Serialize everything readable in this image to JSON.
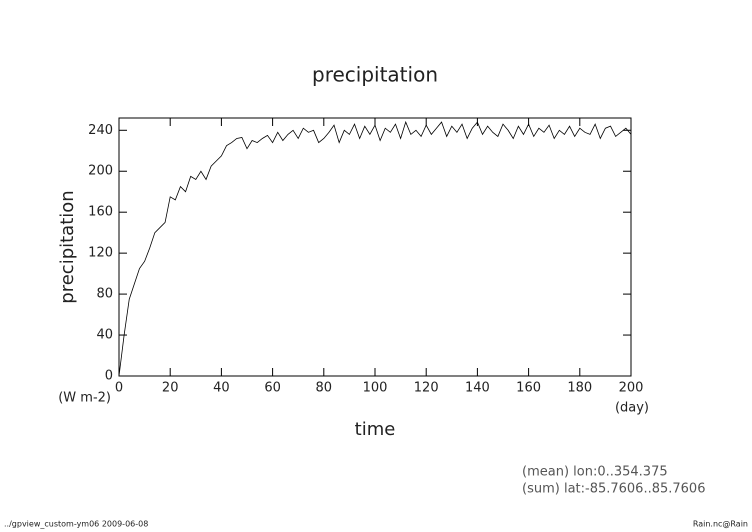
{
  "chart_data": {
    "type": "line",
    "title": "precipitation",
    "ylabel": "precipitation",
    "xlabel": "time",
    "yunit": "(W m-2)",
    "xunit": "(day)",
    "annotations": [
      "(mean) lon:0..354.375",
      "(sum) lat:-85.7606..85.7606"
    ],
    "footer_left": "../gpview_custom-ym06  2009-06-08",
    "footer_right": "Rain.nc@Rain",
    "xlim": [
      0,
      200
    ],
    "ylim": [
      0,
      252
    ],
    "xticks": [
      0,
      20,
      40,
      60,
      80,
      100,
      120,
      140,
      160,
      180,
      200
    ],
    "yticks": [
      0,
      40,
      80,
      120,
      160,
      200,
      240
    ],
    "x": [
      0,
      2,
      4,
      6,
      8,
      10,
      12,
      14,
      16,
      18,
      20,
      22,
      24,
      26,
      28,
      30,
      32,
      34,
      36,
      38,
      40,
      42,
      44,
      46,
      48,
      50,
      52,
      54,
      56,
      58,
      60,
      62,
      64,
      66,
      68,
      70,
      72,
      74,
      76,
      78,
      80,
      82,
      84,
      86,
      88,
      90,
      92,
      94,
      96,
      98,
      100,
      102,
      104,
      106,
      108,
      110,
      112,
      114,
      116,
      118,
      120,
      122,
      124,
      126,
      128,
      130,
      132,
      134,
      136,
      138,
      140,
      142,
      144,
      146,
      148,
      150,
      152,
      154,
      156,
      158,
      160,
      162,
      164,
      166,
      168,
      170,
      172,
      174,
      176,
      178,
      180,
      182,
      184,
      186,
      188,
      190,
      192,
      194,
      196,
      198,
      200
    ],
    "series": [
      {
        "name": "precipitation",
        "color": "#000000",
        "values": [
          0,
          40,
          75,
          90,
          105,
          112,
          125,
          140,
          145,
          150,
          175,
          172,
          185,
          180,
          195,
          192,
          200,
          192,
          205,
          210,
          215,
          225,
          228,
          232,
          233,
          222,
          230,
          228,
          232,
          235,
          228,
          238,
          230,
          236,
          240,
          232,
          242,
          238,
          240,
          228,
          232,
          238,
          245,
          228,
          240,
          236,
          246,
          232,
          244,
          236,
          245,
          230,
          242,
          238,
          246,
          232,
          248,
          236,
          240,
          234,
          245,
          236,
          242,
          248,
          234,
          244,
          238,
          246,
          232,
          242,
          248,
          236,
          244,
          238,
          234,
          246,
          240,
          232,
          244,
          236,
          246,
          234,
          242,
          238,
          245,
          232,
          240,
          236,
          244,
          234,
          242,
          238,
          236,
          246,
          232,
          242,
          244,
          234,
          238,
          242,
          236
        ]
      }
    ]
  }
}
